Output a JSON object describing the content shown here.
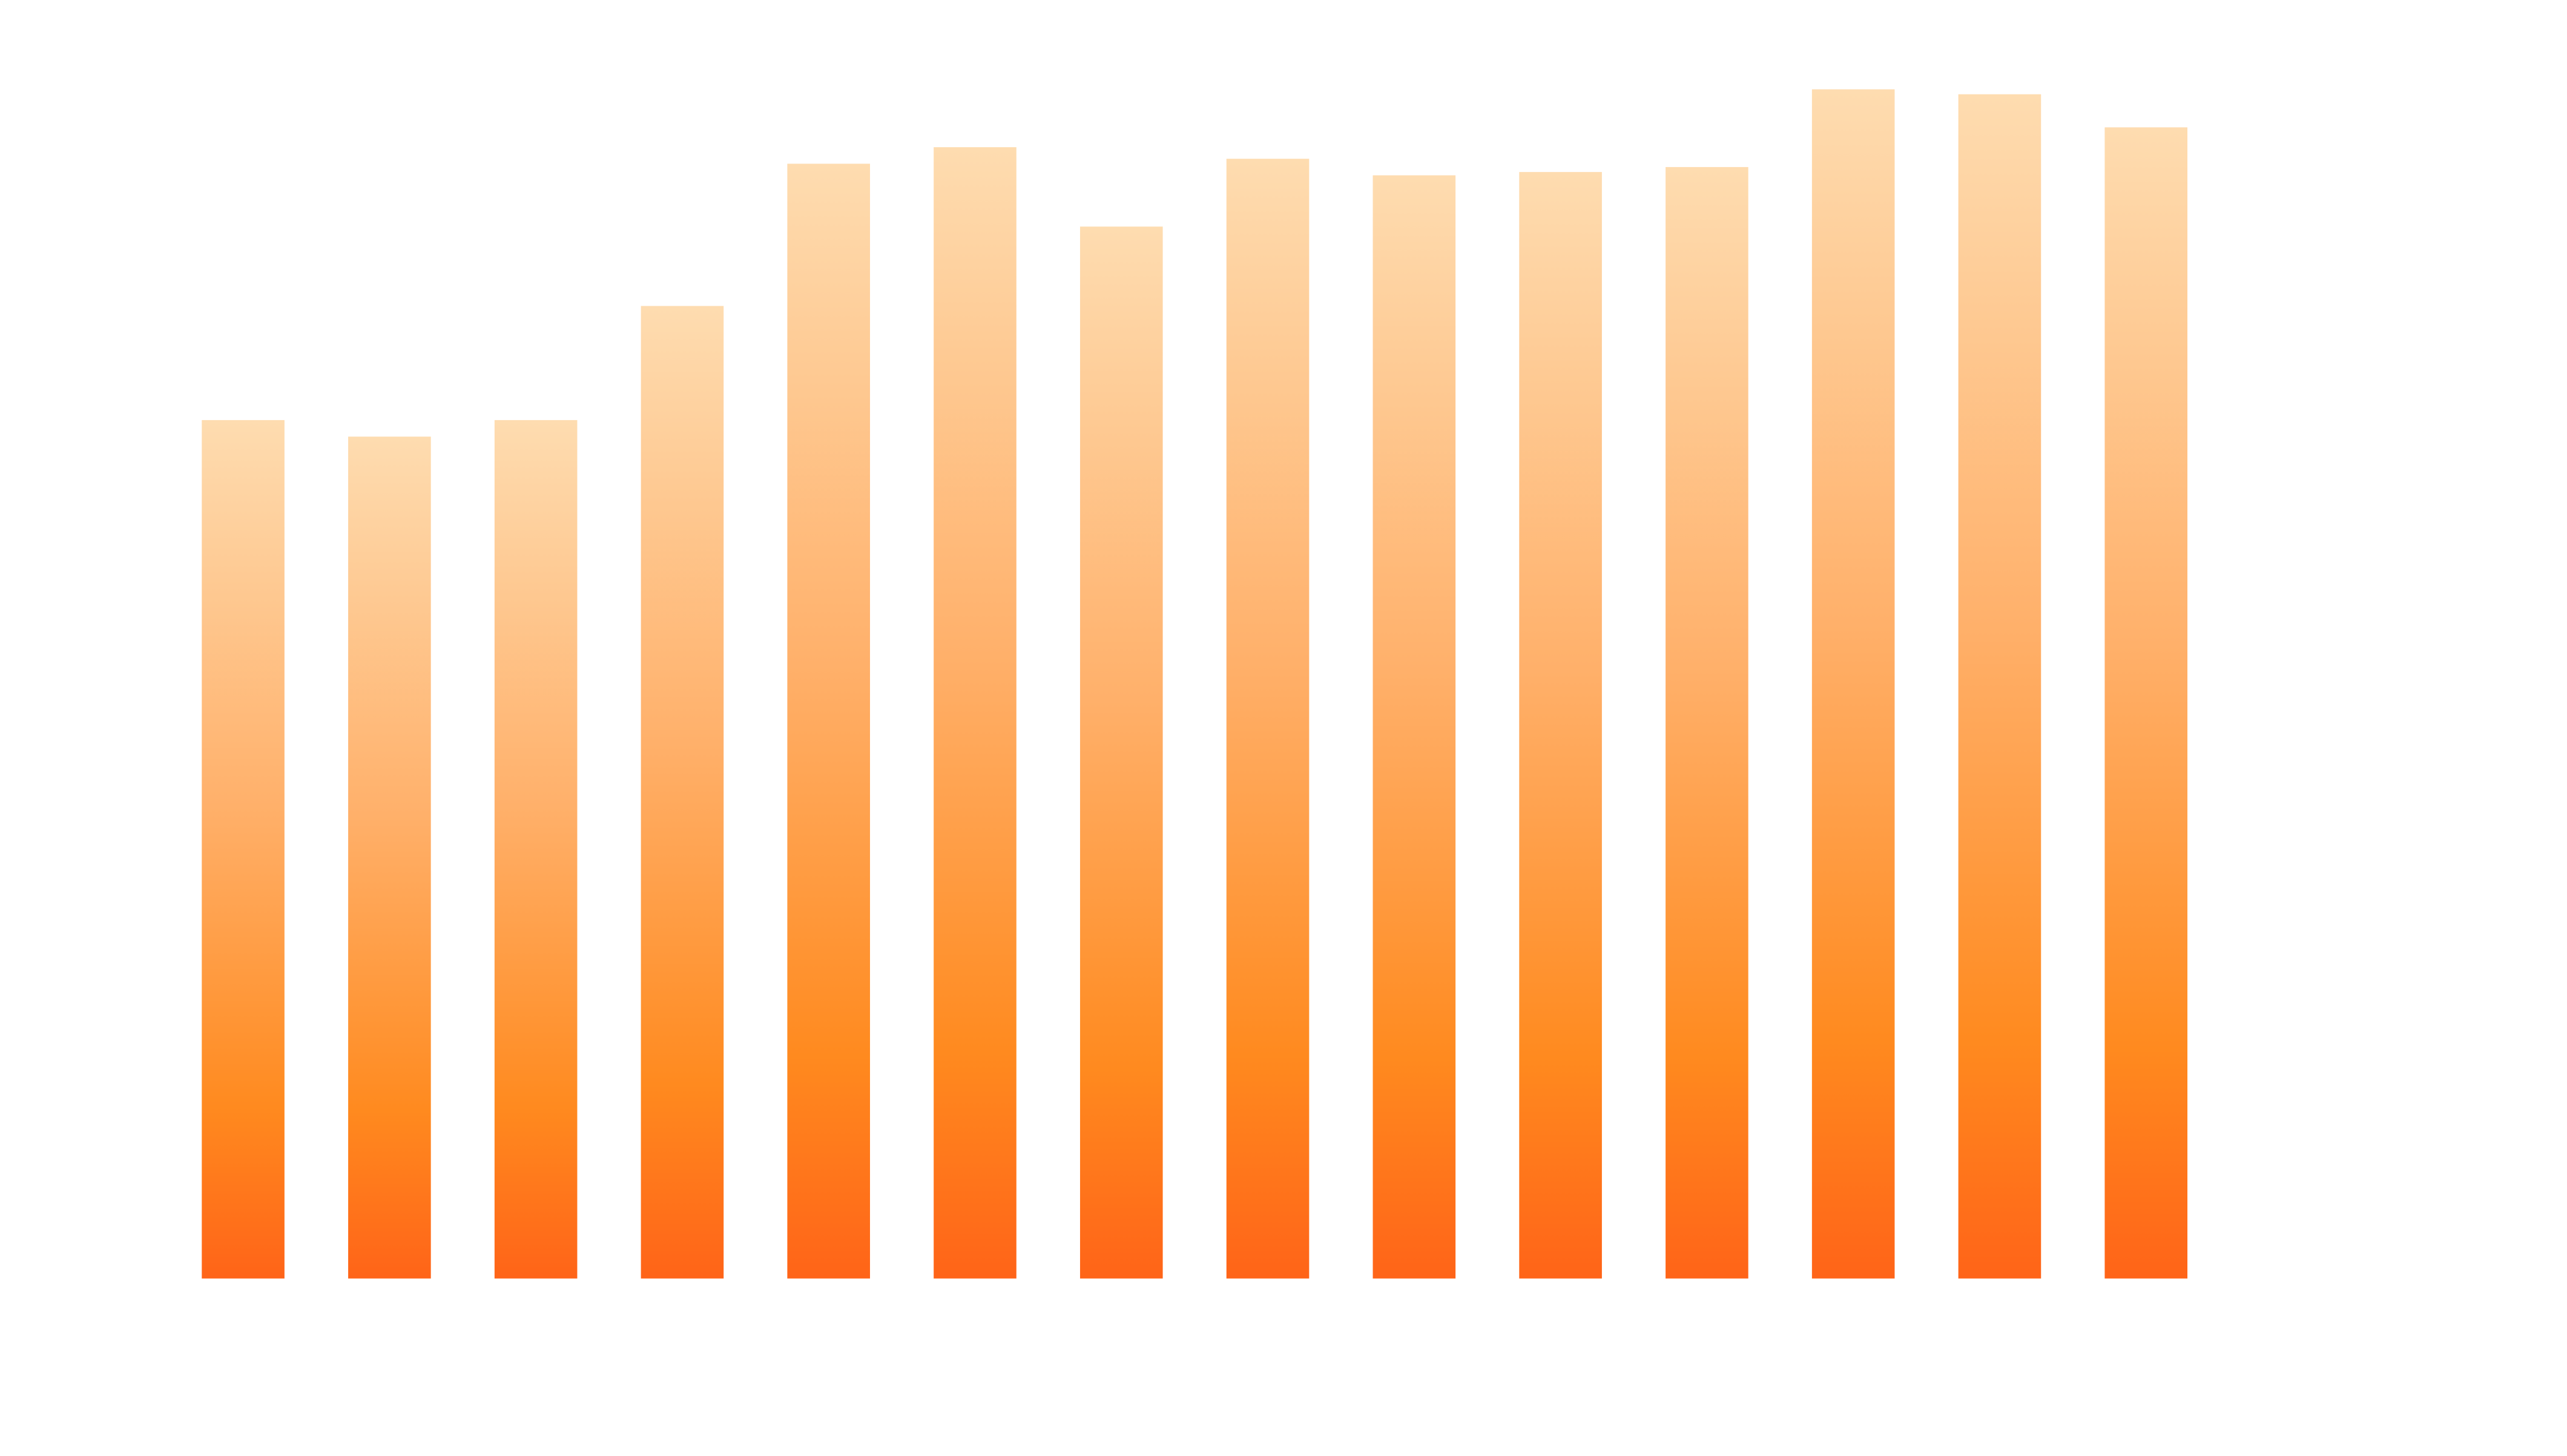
{
  "chart_data": {
    "type": "bar",
    "categories": [
      null,
      null,
      null,
      null,
      null,
      null,
      null,
      null,
      null,
      null,
      null,
      null,
      null,
      null
    ],
    "values": [
      519,
      509,
      519,
      588,
      674,
      684,
      636,
      677,
      667,
      669,
      672,
      719,
      716,
      696
    ],
    "color": "#ff8a1f"
  }
}
